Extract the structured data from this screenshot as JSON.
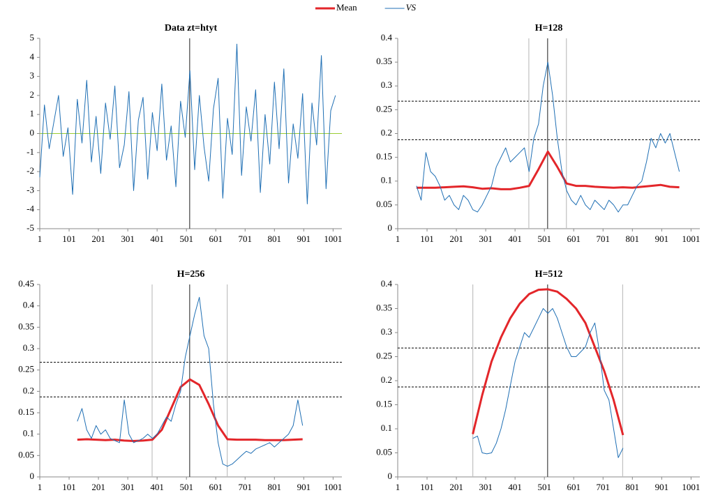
{
  "chart_data": [
    {
      "type": "line",
      "title": "Data zt=htyt",
      "xlim": [
        1,
        1031
      ],
      "xticks": [
        1,
        101,
        201,
        301,
        401,
        501,
        601,
        701,
        801,
        901,
        1001
      ],
      "ylim": [
        -5,
        5
      ],
      "yticks": [
        -5,
        -4,
        -3,
        -2,
        -1,
        0,
        1,
        2,
        3,
        4,
        5
      ],
      "vlines": [
        {
          "x": 512,
          "color": "#404040"
        }
      ],
      "hlines": [
        {
          "y": 0,
          "color": "#9acd32",
          "style": "solid"
        }
      ],
      "series": [
        {
          "color": "#1f6fb4",
          "x": [
            1,
            17,
            33,
            49,
            65,
            81,
            97,
            113,
            129,
            145,
            161,
            177,
            193,
            209,
            225,
            241,
            257,
            273,
            289,
            305,
            321,
            337,
            353,
            369,
            385,
            401,
            417,
            433,
            449,
            465,
            481,
            497,
            513,
            529,
            545,
            561,
            577,
            593,
            609,
            625,
            641,
            657,
            673,
            689,
            705,
            721,
            737,
            753,
            769,
            785,
            801,
            817,
            833,
            849,
            865,
            881,
            897,
            913,
            929,
            945,
            961,
            977,
            993,
            1009
          ],
          "values": [
            -2.3,
            1.5,
            -0.8,
            0.6,
            2.0,
            -1.2,
            0.3,
            -3.2,
            1.8,
            -0.5,
            2.8,
            -1.5,
            0.9,
            -2.1,
            1.6,
            -0.3,
            2.5,
            -1.8,
            -0.6,
            2.2,
            -3.0,
            0.7,
            1.9,
            -2.4,
            1.1,
            -0.9,
            2.6,
            -1.4,
            0.4,
            -2.8,
            1.7,
            -0.2,
            3.3,
            -1.9,
            2.0,
            -0.7,
            -2.5,
            1.3,
            2.9,
            -3.4,
            0.8,
            -1.1,
            4.7,
            -2.2,
            1.4,
            -0.4,
            2.3,
            -3.1,
            1.0,
            -1.6,
            2.7,
            -0.8,
            3.4,
            -2.6,
            0.5,
            -1.3,
            2.1,
            -3.7,
            1.6,
            -0.6,
            4.1,
            -2.9,
            1.2,
            2.0
          ]
        }
      ]
    },
    {
      "type": "line",
      "title": "H=128",
      "legend": "top",
      "xlim": [
        1,
        1031
      ],
      "xticks": [
        1,
        101,
        201,
        301,
        401,
        501,
        601,
        701,
        801,
        901,
        1001
      ],
      "ylim": [
        0,
        0.4
      ],
      "yticks": [
        0,
        0.05,
        0.1,
        0.15,
        0.2,
        0.25,
        0.3,
        0.35,
        0.4
      ],
      "vlines": [
        {
          "x": 448,
          "color": "#c0c0c0"
        },
        {
          "x": 576,
          "color": "#c0c0c0"
        },
        {
          "x": 512,
          "color": "#404040"
        }
      ],
      "hlines": [
        {
          "y": 0.187,
          "color": "#000000",
          "style": "dashed"
        },
        {
          "y": 0.268,
          "color": "#000000",
          "style": "dashed"
        }
      ],
      "series": [
        {
          "name": "Mean",
          "color": "#e3262a",
          "width": 3,
          "x": [
            65,
            97,
            129,
            161,
            193,
            225,
            257,
            289,
            321,
            353,
            385,
            417,
            449,
            481,
            513,
            545,
            577,
            609,
            641,
            673,
            705,
            737,
            769,
            801,
            833,
            865,
            897,
            929,
            961
          ],
          "values": [
            0.086,
            0.086,
            0.086,
            0.087,
            0.088,
            0.089,
            0.087,
            0.084,
            0.085,
            0.083,
            0.083,
            0.086,
            0.09,
            0.125,
            0.162,
            0.13,
            0.095,
            0.09,
            0.09,
            0.088,
            0.087,
            0.086,
            0.087,
            0.086,
            0.088,
            0.09,
            0.092,
            0.088,
            0.087
          ]
        },
        {
          "name": "VS",
          "color": "#1f6fb4",
          "width": 1,
          "x": [
            65,
            81,
            97,
            113,
            129,
            145,
            161,
            177,
            193,
            209,
            225,
            241,
            257,
            273,
            289,
            305,
            321,
            337,
            353,
            369,
            385,
            401,
            417,
            433,
            449,
            465,
            481,
            497,
            513,
            529,
            545,
            561,
            577,
            593,
            609,
            625,
            641,
            657,
            673,
            689,
            705,
            721,
            737,
            753,
            769,
            785,
            801,
            817,
            833,
            849,
            865,
            881,
            897,
            913,
            929,
            945,
            961
          ],
          "values": [
            0.09,
            0.06,
            0.16,
            0.12,
            0.11,
            0.09,
            0.06,
            0.07,
            0.05,
            0.04,
            0.07,
            0.06,
            0.04,
            0.035,
            0.05,
            0.07,
            0.09,
            0.13,
            0.15,
            0.17,
            0.14,
            0.15,
            0.16,
            0.17,
            0.12,
            0.19,
            0.22,
            0.3,
            0.35,
            0.28,
            0.19,
            0.12,
            0.08,
            0.06,
            0.05,
            0.07,
            0.05,
            0.04,
            0.06,
            0.05,
            0.04,
            0.06,
            0.05,
            0.035,
            0.05,
            0.05,
            0.07,
            0.09,
            0.1,
            0.14,
            0.19,
            0.17,
            0.2,
            0.18,
            0.2,
            0.16,
            0.12
          ]
        }
      ]
    },
    {
      "type": "line",
      "title": "H=256",
      "xlim": [
        1,
        1031
      ],
      "xticks": [
        1,
        101,
        201,
        301,
        401,
        501,
        601,
        701,
        801,
        901,
        1001
      ],
      "ylim": [
        0,
        0.45
      ],
      "yticks": [
        0,
        0.05,
        0.1,
        0.15,
        0.2,
        0.25,
        0.3,
        0.35,
        0.4,
        0.45
      ],
      "vlines": [
        {
          "x": 384,
          "color": "#c0c0c0"
        },
        {
          "x": 640,
          "color": "#c0c0c0"
        },
        {
          "x": 512,
          "color": "#404040"
        }
      ],
      "hlines": [
        {
          "y": 0.187,
          "color": "#000000",
          "style": "dashed"
        },
        {
          "y": 0.268,
          "color": "#000000",
          "style": "dashed"
        }
      ],
      "series": [
        {
          "name": "Mean",
          "color": "#e3262a",
          "width": 3,
          "x": [
            129,
            161,
            193,
            225,
            257,
            289,
            321,
            353,
            385,
            417,
            449,
            481,
            513,
            545,
            577,
            609,
            641,
            673,
            705,
            737,
            769,
            801,
            833,
            865,
            897
          ],
          "values": [
            0.087,
            0.088,
            0.087,
            0.086,
            0.087,
            0.085,
            0.084,
            0.085,
            0.087,
            0.11,
            0.16,
            0.21,
            0.228,
            0.215,
            0.17,
            0.12,
            0.088,
            0.087,
            0.087,
            0.087,
            0.086,
            0.086,
            0.086,
            0.087,
            0.088
          ]
        },
        {
          "name": "VS",
          "color": "#1f6fb4",
          "width": 1,
          "x": [
            129,
            145,
            161,
            177,
            193,
            209,
            225,
            241,
            257,
            273,
            289,
            305,
            321,
            337,
            353,
            369,
            385,
            401,
            417,
            433,
            449,
            465,
            481,
            497,
            513,
            529,
            545,
            561,
            577,
            593,
            609,
            625,
            641,
            657,
            673,
            689,
            705,
            721,
            737,
            753,
            769,
            785,
            801,
            817,
            833,
            849,
            865,
            881,
            897
          ],
          "values": [
            0.13,
            0.16,
            0.11,
            0.09,
            0.12,
            0.1,
            0.11,
            0.09,
            0.085,
            0.08,
            0.18,
            0.1,
            0.08,
            0.085,
            0.09,
            0.1,
            0.09,
            0.1,
            0.12,
            0.14,
            0.13,
            0.17,
            0.2,
            0.28,
            0.33,
            0.38,
            0.42,
            0.33,
            0.3,
            0.17,
            0.08,
            0.03,
            0.025,
            0.03,
            0.04,
            0.05,
            0.06,
            0.055,
            0.065,
            0.07,
            0.075,
            0.08,
            0.07,
            0.08,
            0.09,
            0.1,
            0.12,
            0.18,
            0.12
          ]
        }
      ]
    },
    {
      "type": "line",
      "title": "H=512",
      "xlim": [
        1,
        1031
      ],
      "xticks": [
        1,
        101,
        201,
        301,
        401,
        501,
        601,
        701,
        801,
        901,
        1001
      ],
      "ylim": [
        0,
        0.4
      ],
      "yticks": [
        0,
        0.05,
        0.1,
        0.15,
        0.2,
        0.25,
        0.3,
        0.35,
        0.4
      ],
      "vlines": [
        {
          "x": 257,
          "color": "#c0c0c0"
        },
        {
          "x": 768,
          "color": "#c0c0c0"
        },
        {
          "x": 512,
          "color": "#404040"
        }
      ],
      "hlines": [
        {
          "y": 0.187,
          "color": "#000000",
          "style": "dashed"
        },
        {
          "y": 0.268,
          "color": "#000000",
          "style": "dashed"
        }
      ],
      "series": [
        {
          "name": "Mean",
          "color": "#e3262a",
          "width": 3,
          "x": [
            257,
            289,
            321,
            353,
            385,
            417,
            449,
            481,
            513,
            545,
            577,
            609,
            641,
            673,
            705,
            737,
            769
          ],
          "values": [
            0.089,
            0.17,
            0.24,
            0.29,
            0.33,
            0.36,
            0.38,
            0.389,
            0.39,
            0.385,
            0.37,
            0.35,
            0.32,
            0.27,
            0.22,
            0.16,
            0.087
          ]
        },
        {
          "name": "VS",
          "color": "#1f6fb4",
          "width": 1,
          "x": [
            257,
            273,
            289,
            305,
            321,
            337,
            353,
            369,
            385,
            401,
            417,
            433,
            449,
            465,
            481,
            497,
            513,
            529,
            545,
            561,
            577,
            593,
            609,
            625,
            641,
            657,
            673,
            689,
            705,
            721,
            737,
            753,
            769
          ],
          "values": [
            0.08,
            0.085,
            0.05,
            0.048,
            0.05,
            0.07,
            0.1,
            0.14,
            0.19,
            0.24,
            0.27,
            0.3,
            0.29,
            0.31,
            0.33,
            0.35,
            0.34,
            0.35,
            0.33,
            0.3,
            0.27,
            0.25,
            0.25,
            0.26,
            0.27,
            0.3,
            0.32,
            0.26,
            0.18,
            0.16,
            0.1,
            0.04,
            0.06
          ]
        }
      ]
    }
  ]
}
